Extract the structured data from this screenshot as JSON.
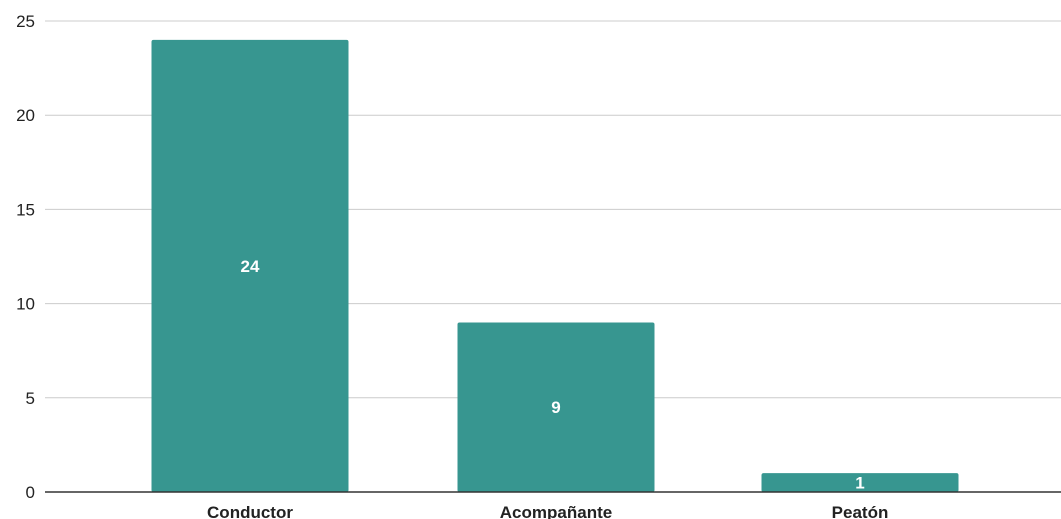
{
  "chart_data": {
    "type": "bar",
    "categories": [
      "Conductor",
      "Acompañante",
      "Peatón"
    ],
    "values": [
      24,
      9,
      1
    ],
    "data_labels": [
      "24",
      "9",
      "1"
    ],
    "yticks": [
      "0",
      "5",
      "10",
      "15",
      "20",
      "25"
    ],
    "ylim": [
      0,
      25
    ],
    "grid": true,
    "legend": "none",
    "bar_color": "#379690",
    "grid_color": "#cccccc",
    "axis_color": "#333333"
  }
}
